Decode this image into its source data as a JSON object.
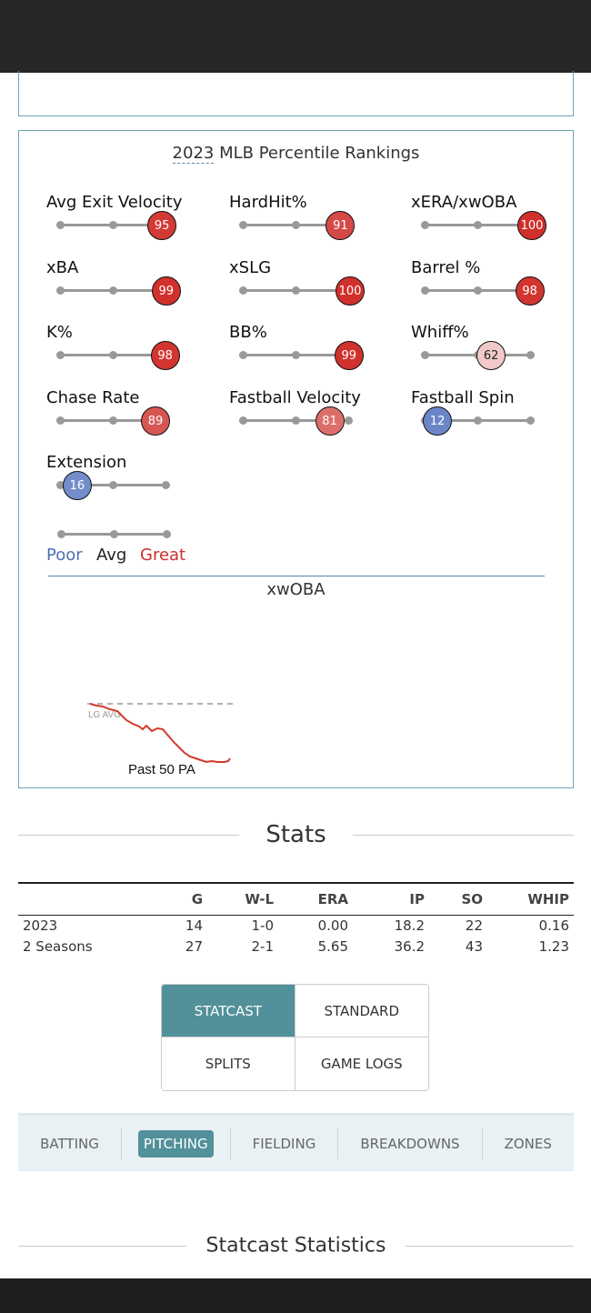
{
  "colors": {
    "great": "#c9302c",
    "poor": "#4f6eb5",
    "accent": "#52909a"
  },
  "percentile": {
    "year": "2023",
    "title_rest": " MLB Percentile Rankings",
    "metrics": [
      {
        "label": "Avg Exit Velocity",
        "value": 95,
        "color": "#d23a35"
      },
      {
        "label": "HardHit%",
        "value": 91,
        "color": "#d54a46"
      },
      {
        "label": "xERA/xwOBA",
        "value": 100,
        "color": "#d12f2b"
      },
      {
        "label": "xBA",
        "value": 99,
        "color": "#d1312d"
      },
      {
        "label": "xSLG",
        "value": 100,
        "color": "#d12f2b"
      },
      {
        "label": "Barrel %",
        "value": 98,
        "color": "#d23530"
      },
      {
        "label": "K%",
        "value": 98,
        "color": "#d23530"
      },
      {
        "label": "BB%",
        "value": 99,
        "color": "#d1312d"
      },
      {
        "label": "Whiff%",
        "value": 62,
        "color": "#f1c9c7"
      },
      {
        "label": "Chase Rate",
        "value": 89,
        "color": "#d65752"
      },
      {
        "label": "Fastball Velocity",
        "value": 81,
        "color": "#dc6e6a"
      },
      {
        "label": "Fastball Spin",
        "value": 12,
        "color": "#6a86c7"
      },
      {
        "label": "Extension",
        "value": 16,
        "color": "#738dca"
      }
    ],
    "legend": {
      "poor": "Poor",
      "avg": "Avg",
      "great": "Great"
    },
    "xwoba_title": "xwOBA",
    "lg_avg": "LG AVG",
    "past_label": "Past 50 PA"
  },
  "stats": {
    "heading": "Stats",
    "columns": [
      "",
      "G",
      "W-L",
      "ERA",
      "IP",
      "SO",
      "WHIP"
    ],
    "rows": [
      [
        "2023",
        "14",
        "1-0",
        "0.00",
        "18.2",
        "22",
        "0.16"
      ],
      [
        "2 Seasons",
        "27",
        "2-1",
        "5.65",
        "36.2",
        "43",
        "1.23"
      ]
    ]
  },
  "buttons": {
    "statcast": "STATCAST",
    "standard": "STANDARD",
    "splits": "SPLITS",
    "game_logs": "GAME LOGS"
  },
  "tabs": {
    "batting": "BATTING",
    "pitching": "PITCHING",
    "fielding": "FIELDING",
    "breakdowns": "BREAKDOWNS",
    "zones": "ZONES"
  },
  "statcast_heading": "Statcast Statistics"
}
